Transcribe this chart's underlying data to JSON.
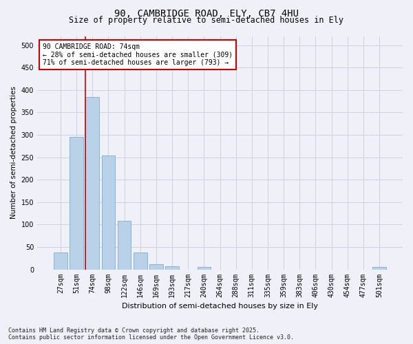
{
  "title": "90, CAMBRIDGE ROAD, ELY, CB7 4HU",
  "subtitle": "Size of property relative to semi-detached houses in Ely",
  "xlabel": "Distribution of semi-detached houses by size in Ely",
  "ylabel": "Number of semi-detached properties",
  "categories": [
    "27sqm",
    "51sqm",
    "74sqm",
    "98sqm",
    "122sqm",
    "146sqm",
    "169sqm",
    "193sqm",
    "217sqm",
    "240sqm",
    "264sqm",
    "288sqm",
    "311sqm",
    "335sqm",
    "359sqm",
    "383sqm",
    "406sqm",
    "430sqm",
    "454sqm",
    "477sqm",
    "501sqm"
  ],
  "values": [
    37,
    296,
    385,
    254,
    108,
    37,
    11,
    7,
    0,
    5,
    0,
    0,
    0,
    0,
    0,
    0,
    0,
    0,
    0,
    0,
    5
  ],
  "bar_color": "#b8d0e8",
  "bar_edge_color": "#7aafd4",
  "highlight_index": 2,
  "highlight_line_color": "#cc0000",
  "annotation_text": "90 CAMBRIDGE ROAD: 74sqm\n← 28% of semi-detached houses are smaller (309)\n71% of semi-detached houses are larger (793) →",
  "annotation_box_color": "#ffffff",
  "annotation_box_edge_color": "#cc0000",
  "footer_line1": "Contains HM Land Registry data © Crown copyright and database right 2025.",
  "footer_line2": "Contains public sector information licensed under the Open Government Licence v3.0.",
  "ylim": [
    0,
    520
  ],
  "yticks": [
    0,
    50,
    100,
    150,
    200,
    250,
    300,
    350,
    400,
    450,
    500
  ],
  "background_color": "#f0f0f8",
  "grid_color": "#d0d0e0",
  "title_fontsize": 10,
  "subtitle_fontsize": 8.5,
  "tick_fontsize": 7,
  "ylabel_fontsize": 7.5,
  "xlabel_fontsize": 8,
  "annotation_fontsize": 7,
  "footer_fontsize": 6
}
